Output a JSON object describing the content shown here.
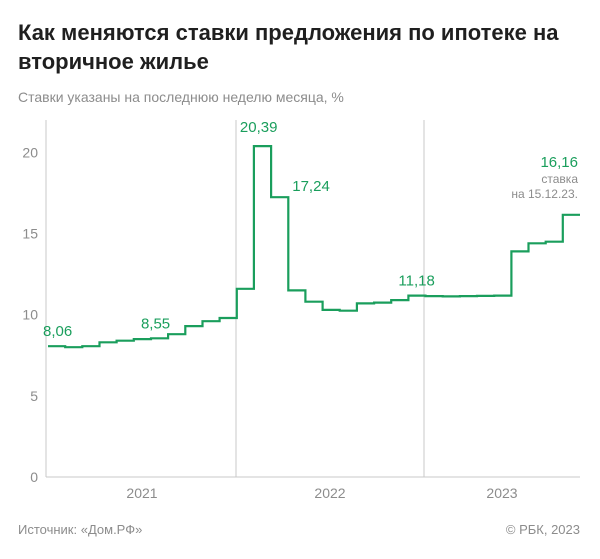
{
  "title": "Как меняются ставки предложения по ипотеке на вторичное жилье",
  "subtitle": "Ставки указаны на последнюю неделю месяца, %",
  "source": "Источник: «Дом.РФ»",
  "copyright": "© РБК, 2023",
  "colors": {
    "line": "#1a9e5c",
    "axis": "#c8c8c8",
    "text": "#8c8c8c"
  },
  "chart_data": {
    "type": "line",
    "step": true,
    "x_labels": [
      "2021",
      "2022",
      "2023"
    ],
    "yticks": [
      "0",
      "5",
      "10",
      "15",
      "20"
    ],
    "ylim": [
      0,
      22
    ],
    "series": [
      {
        "values": [
          8.06,
          8.0,
          8.06,
          8.3,
          8.4,
          8.5,
          8.55,
          8.8,
          9.3,
          9.6,
          9.8,
          11.6,
          20.39,
          17.24,
          11.5,
          10.8,
          10.3,
          10.25,
          10.7,
          10.75,
          10.9,
          11.18,
          11.15,
          11.13,
          11.15,
          11.16,
          11.18,
          13.9,
          14.4,
          14.5,
          16.16
        ]
      }
    ],
    "annotations": [
      {
        "index": 0,
        "text": "8,06"
      },
      {
        "index": 6,
        "text": "8,55"
      },
      {
        "index": 12,
        "text": "20,39"
      },
      {
        "index": 13,
        "text": "17,24"
      },
      {
        "index": 21,
        "text": "11,18"
      },
      {
        "index": 30,
        "text": "16,16"
      }
    ],
    "end_note": [
      "ставка",
      "на 15.12.23."
    ]
  }
}
